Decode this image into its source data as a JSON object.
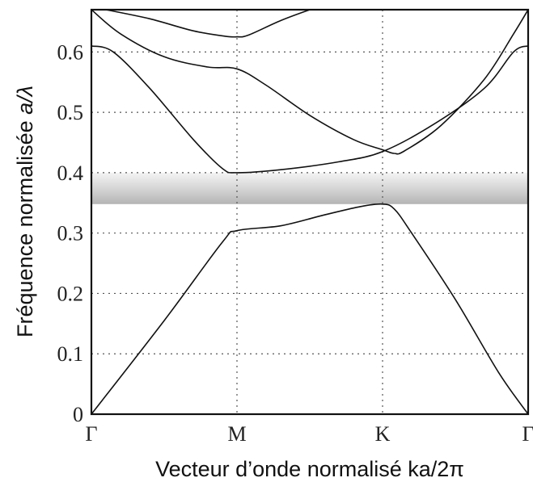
{
  "chart_data": {
    "type": "line",
    "xlabel": "Vecteur d’onde normalisé ka/2π",
    "ylabel_parts": [
      "Fréquence normalisée ",
      "a/λ"
    ],
    "x_ticks": [
      {
        "label": "Γ",
        "x": 0
      },
      {
        "label": "M",
        "x": 1
      },
      {
        "label": "K",
        "x": 2
      },
      {
        "label": "Γ",
        "x": 3
      }
    ],
    "y_ticks": [
      "0",
      "0.1",
      "0.2",
      "0.3",
      "0.4",
      "0.5",
      "0.6"
    ],
    "y_tick_values": [
      0,
      0.1,
      0.2,
      0.3,
      0.4,
      0.5,
      0.6
    ],
    "xlim": [
      0,
      3
    ],
    "ylim": [
      0,
      0.67
    ],
    "grid": true,
    "gap_band": {
      "ymin": 0.348,
      "ymax": 0.4
    },
    "series": [
      {
        "values": [
          [
            0,
            0
          ],
          [
            0.5,
            0.155
          ],
          [
            0.9,
            0.285
          ],
          [
            1,
            0.304
          ],
          [
            1.3,
            0.312
          ],
          [
            1.6,
            0.33
          ],
          [
            1.85,
            0.344
          ],
          [
            2,
            0.348
          ],
          [
            2.08,
            0.34
          ],
          [
            2.2,
            0.3
          ],
          [
            2.5,
            0.19
          ],
          [
            2.8,
            0.068
          ],
          [
            3,
            0
          ]
        ]
      },
      {
        "values": [
          [
            0,
            0.61
          ],
          [
            0.15,
            0.6
          ],
          [
            0.4,
            0.54
          ],
          [
            0.7,
            0.455
          ],
          [
            0.9,
            0.407
          ],
          [
            1,
            0.4
          ],
          [
            1.3,
            0.405
          ],
          [
            1.7,
            0.418
          ],
          [
            2,
            0.435
          ],
          [
            2.35,
            0.48
          ],
          [
            2.7,
            0.54
          ],
          [
            2.9,
            0.6
          ],
          [
            3,
            0.61
          ]
        ]
      },
      {
        "values": [
          [
            0,
            0.67
          ],
          [
            0.2,
            0.63
          ],
          [
            0.5,
            0.592
          ],
          [
            0.8,
            0.575
          ],
          [
            1,
            0.572
          ],
          [
            1.2,
            0.545
          ],
          [
            1.5,
            0.495
          ],
          [
            1.8,
            0.455
          ],
          [
            2,
            0.438
          ],
          [
            2.08,
            0.432
          ],
          [
            2.15,
            0.436
          ],
          [
            2.4,
            0.478
          ],
          [
            2.7,
            0.555
          ],
          [
            2.9,
            0.63
          ],
          [
            3,
            0.67
          ]
        ]
      },
      {
        "values": [
          [
            0.1,
            0.67
          ],
          [
            0.4,
            0.655
          ],
          [
            0.7,
            0.635
          ],
          [
            0.92,
            0.626
          ],
          [
            1,
            0.625
          ],
          [
            1.08,
            0.628
          ],
          [
            1.3,
            0.652
          ],
          [
            1.5,
            0.67
          ]
        ]
      }
    ]
  }
}
